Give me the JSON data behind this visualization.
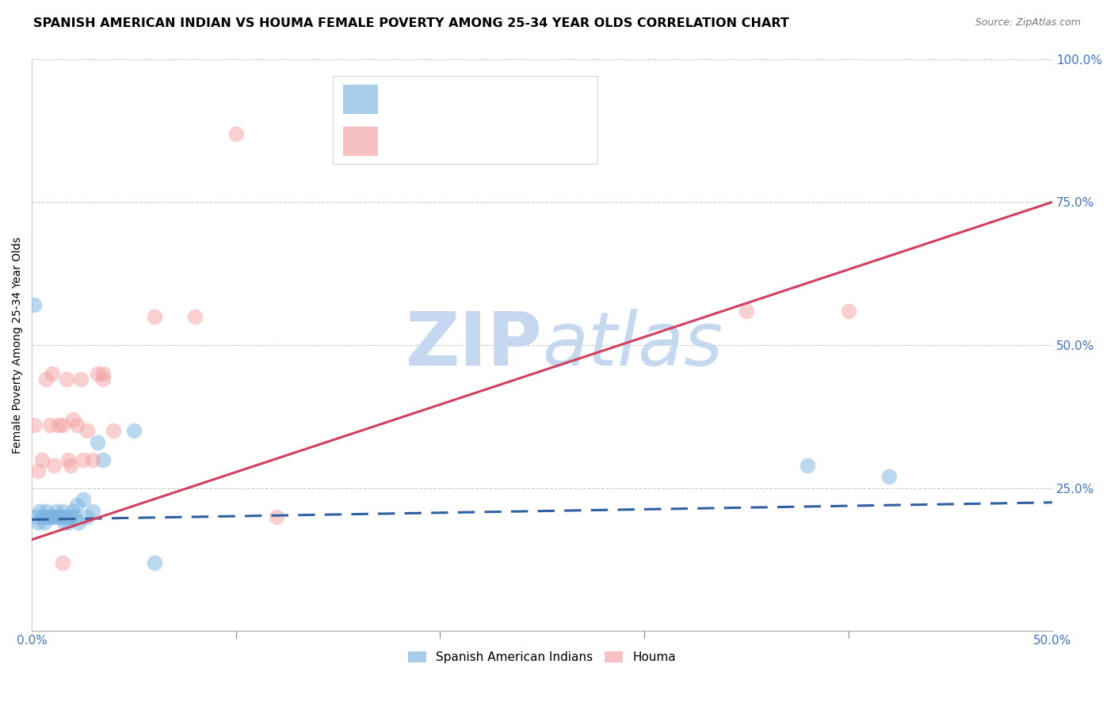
{
  "title": "SPANISH AMERICAN INDIAN VS HOUMA FEMALE POVERTY AMONG 25-34 YEAR OLDS CORRELATION CHART",
  "source": "Source: ZipAtlas.com",
  "ylabel": "Female Poverty Among 25-34 Year Olds",
  "xlim": [
    0.0,
    0.5
  ],
  "ylim": [
    0.0,
    1.0
  ],
  "ytick_labels": [
    "100.0%",
    "75.0%",
    "50.0%",
    "25.0%"
  ],
  "ytick_vals": [
    1.0,
    0.75,
    0.5,
    0.25
  ],
  "xtick_left_label": "0.0%",
  "xtick_right_label": "50.0%",
  "blue_color": "#7ab3e0",
  "pink_color": "#f4a0a0",
  "blue_line_color": "#3060a0",
  "pink_line_color": "#d04060",
  "blue_tick_color": "#4472c4",
  "red_text_color": "#cc2222",
  "blue_scatter_x": [
    0.001,
    0.002,
    0.003,
    0.004,
    0.005,
    0.006,
    0.007,
    0.008,
    0.009,
    0.01,
    0.011,
    0.012,
    0.013,
    0.014,
    0.015,
    0.016,
    0.017,
    0.018,
    0.019,
    0.02,
    0.021,
    0.022,
    0.023,
    0.025,
    0.027,
    0.03,
    0.032,
    0.035,
    0.05,
    0.06,
    0.38,
    0.42
  ],
  "blue_scatter_y": [
    0.57,
    0.2,
    0.19,
    0.21,
    0.2,
    0.19,
    0.21,
    0.2,
    0.2,
    0.2,
    0.2,
    0.21,
    0.2,
    0.2,
    0.21,
    0.19,
    0.2,
    0.19,
    0.2,
    0.21,
    0.2,
    0.22,
    0.19,
    0.23,
    0.2,
    0.21,
    0.33,
    0.3,
    0.35,
    0.12,
    0.29,
    0.27
  ],
  "pink_scatter_x": [
    0.001,
    0.003,
    0.005,
    0.007,
    0.009,
    0.01,
    0.011,
    0.013,
    0.015,
    0.017,
    0.018,
    0.019,
    0.02,
    0.022,
    0.024,
    0.025,
    0.027,
    0.03,
    0.032,
    0.035,
    0.06,
    0.08,
    0.1,
    0.12,
    0.35,
    0.4,
    0.035,
    0.04,
    0.015
  ],
  "pink_scatter_y": [
    0.36,
    0.28,
    0.3,
    0.44,
    0.36,
    0.45,
    0.29,
    0.36,
    0.36,
    0.44,
    0.3,
    0.29,
    0.37,
    0.36,
    0.44,
    0.3,
    0.35,
    0.3,
    0.45,
    0.45,
    0.55,
    0.55,
    0.87,
    0.2,
    0.56,
    0.56,
    0.44,
    0.35,
    0.12
  ],
  "blue_trend_x": [
    0.0,
    0.5
  ],
  "blue_trend_y": [
    0.195,
    0.225
  ],
  "pink_trend_x": [
    0.0,
    0.5
  ],
  "pink_trend_y": [
    0.16,
    0.75
  ],
  "watermark_line1": "ZIP",
  "watermark_line2": "atlas",
  "watermark_color": "#c5d8f0",
  "title_fontsize": 11.5,
  "axis_label_fontsize": 10,
  "tick_fontsize": 11,
  "legend_fontsize": 13
}
